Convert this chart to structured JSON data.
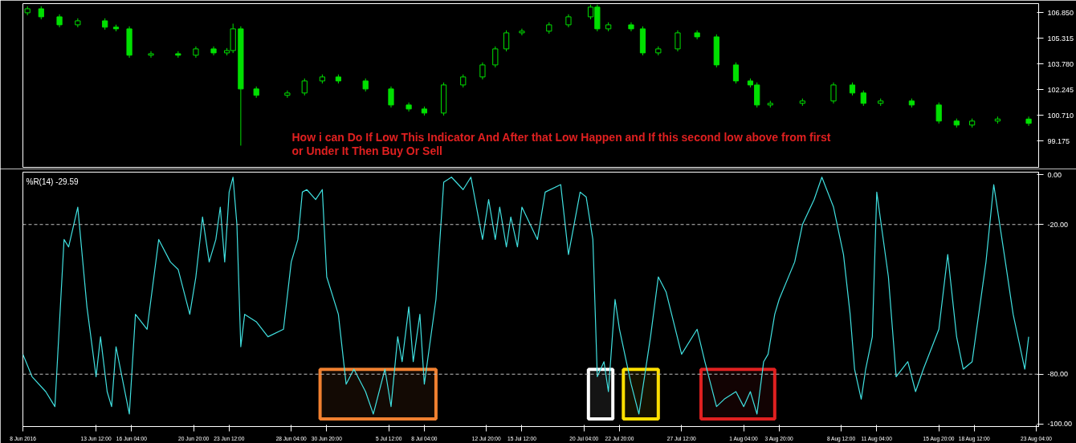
{
  "chart_data": [
    {
      "type": "candlestick",
      "xlim": [
        "2016-06-08T00:00",
        "2016-08-23T08:00"
      ],
      "ylim": [
        97.6,
        107.4
      ],
      "tick_labels": "y",
      "grid": false,
      "yticks": [
        {
          "value": 99.175,
          "label": "99.175"
        },
        {
          "value": 100.71,
          "label": "100.710"
        },
        {
          "value": 102.245,
          "label": "102.245"
        },
        {
          "value": 103.78,
          "label": "103.780"
        },
        {
          "value": 105.315,
          "label": "105.315"
        },
        {
          "value": 106.85,
          "label": "106.850"
        }
      ],
      "annotations": [
        "How i can Do If Low This Indicator And After that Low Happen  and If this second low above from first",
        "or Under It Then Buy Or Sell"
      ],
      "series": [
        {
          "color": "#00e000",
          "x": [
            "2016-06-08T08:15",
            "2016-06-09T09:00",
            "2016-06-10T18:00",
            "2016-06-12T03:00",
            "2016-06-14T04:00",
            "2016-06-15T00:00",
            "2016-06-16T00:00",
            "2016-06-17T15:00",
            "2016-06-19T16:00",
            "2016-06-21T00:00",
            "2016-06-22T08:00",
            "2016-06-23T08:00",
            "2016-06-23T19:00",
            "2016-06-24T09:00",
            "2016-06-25T13:00",
            "2016-06-27T21:00",
            "2016-06-29T04:00",
            "2016-06-30T12:00",
            "2016-07-01T17:00",
            "2016-07-03T18:00",
            "2016-07-05T16:00",
            "2016-07-07T00:00",
            "2016-07-08T04:00",
            "2016-07-09T15:00",
            "2016-07-11T02:00",
            "2016-07-12T13:00",
            "2016-07-13T12:00",
            "2016-07-14T08:00",
            "2016-07-15T12:00",
            "2016-07-17T13:00",
            "2016-07-19T00:00",
            "2016-07-20T16:00",
            "2016-07-21T04:00",
            "2016-07-22T00:00",
            "2016-07-23T17:00",
            "2016-07-24T14:00",
            "2016-07-25T18:00",
            "2016-07-27T05:00",
            "2016-07-28T16:00",
            "2016-07-30T03:00",
            "2016-07-31T14:00",
            "2016-08-01T16:00",
            "2016-08-02T04:00",
            "2016-08-03T04:00",
            "2016-08-05T14:00",
            "2016-08-07T22:00",
            "2016-08-09T08:00",
            "2016-08-10T04:00",
            "2016-08-11T11:00",
            "2016-08-13T19:00",
            "2016-08-15T20:00",
            "2016-08-17T04:00",
            "2016-08-18T08:00",
            "2016-08-20T06:00",
            "2016-08-22T14:00"
          ],
          "ohlc": [
            [
              106.85,
              107.24,
              106.7,
              107.09
            ],
            [
              107.09,
              107.24,
              106.46,
              106.61
            ],
            [
              106.61,
              106.76,
              105.98,
              106.13
            ],
            [
              106.13,
              106.52,
              105.98,
              106.37
            ],
            [
              106.37,
              106.52,
              105.84,
              105.99
            ],
            [
              105.99,
              106.14,
              105.74,
              105.89
            ],
            [
              105.89,
              106.04,
              104.16,
              104.31
            ],
            [
              104.31,
              104.55,
              104.16,
              104.4
            ],
            [
              104.4,
              104.55,
              104.16,
              104.31
            ],
            [
              104.31,
              104.84,
              104.16,
              104.69
            ],
            [
              104.69,
              104.84,
              104.3,
              104.45
            ],
            [
              104.45,
              104.74,
              104.3,
              104.59
            ],
            [
              104.59,
              106.2,
              104.44,
              105.89
            ],
            [
              105.89,
              106.04,
              98.9,
              102.29
            ],
            [
              102.29,
              102.44,
              101.76,
              101.91
            ],
            [
              101.91,
              102.2,
              101.76,
              102.05
            ],
            [
              102.05,
              102.92,
              101.9,
              102.77
            ],
            [
              102.77,
              103.16,
              102.62,
              103.01
            ],
            [
              103.01,
              103.16,
              102.62,
              102.77
            ],
            [
              102.77,
              102.92,
              102.14,
              102.29
            ],
            [
              102.29,
              102.44,
              101.18,
              101.33
            ],
            [
              101.33,
              101.48,
              100.94,
              101.09
            ],
            [
              101.09,
              101.24,
              100.7,
              100.85
            ],
            [
              100.85,
              102.68,
              100.7,
              102.53
            ],
            [
              102.53,
              103.16,
              102.38,
              103.01
            ],
            [
              103.01,
              103.88,
              102.86,
              103.73
            ],
            [
              103.73,
              104.84,
              103.58,
              104.69
            ],
            [
              104.69,
              105.8,
              104.54,
              105.65
            ],
            [
              105.65,
              105.9,
              105.5,
              105.75
            ],
            [
              105.75,
              106.28,
              105.6,
              106.13
            ],
            [
              106.13,
              106.76,
              105.98,
              106.61
            ],
            [
              106.61,
              107.34,
              106.46,
              107.19
            ],
            [
              107.19,
              107.34,
              105.74,
              105.89
            ],
            [
              105.89,
              106.28,
              105.74,
              106.13
            ],
            [
              106.13,
              106.28,
              105.74,
              105.89
            ],
            [
              105.89,
              106.04,
              104.3,
              104.45
            ],
            [
              104.45,
              104.84,
              104.3,
              104.69
            ],
            [
              104.69,
              105.8,
              104.54,
              105.65
            ],
            [
              105.65,
              105.8,
              105.26,
              105.41
            ],
            [
              105.41,
              105.56,
              103.58,
              103.73
            ],
            [
              103.73,
              103.88,
              102.62,
              102.77
            ],
            [
              102.77,
              102.92,
              102.38,
              102.53
            ],
            [
              102.53,
              102.68,
              101.18,
              101.33
            ],
            [
              101.33,
              101.58,
              101.18,
              101.43
            ],
            [
              101.43,
              101.72,
              101.28,
              101.57
            ],
            [
              101.57,
              102.68,
              101.42,
              102.53
            ],
            [
              102.53,
              102.68,
              101.9,
              102.05
            ],
            [
              102.05,
              102.2,
              101.28,
              101.43
            ],
            [
              101.43,
              101.72,
              101.28,
              101.57
            ],
            [
              101.57,
              101.72,
              101.18,
              101.33
            ],
            [
              101.33,
              101.48,
              100.22,
              100.37
            ],
            [
              100.37,
              100.52,
              99.98,
              100.13
            ],
            [
              100.13,
              100.52,
              99.98,
              100.37
            ],
            [
              100.37,
              100.64,
              100.22,
              100.49
            ],
            [
              100.49,
              100.64,
              100.08,
              100.23
            ]
          ]
        }
      ]
    },
    {
      "type": "line",
      "title": "%R(14) -29.59",
      "xlim": [
        "2016-06-08T00:00",
        "2016-08-23T08:00"
      ],
      "ylim": [
        -101,
        1
      ],
      "grid": false,
      "xticks": [
        {
          "value": "2016-06-08T00:00",
          "label": "8 Jun 2016"
        },
        {
          "value": "2016-06-13T12:00",
          "label": "13 Jun 12:00"
        },
        {
          "value": "2016-06-16T04:00",
          "label": "16 Jun 04:00"
        },
        {
          "value": "2016-06-20T20:00",
          "label": "20 Jun 20:00"
        },
        {
          "value": "2016-06-23T12:00",
          "label": "23 Jun 12:00"
        },
        {
          "value": "2016-06-28T04:00",
          "label": "28 Jun 04:00"
        },
        {
          "value": "2016-06-30T20:00",
          "label": "30 Jun 20:00"
        },
        {
          "value": "2016-07-05T12:00",
          "label": "5 Jul 12:00"
        },
        {
          "value": "2016-07-08T04:00",
          "label": "8 Jul 04:00"
        },
        {
          "value": "2016-07-12T20:00",
          "label": "12 Jul 20:00"
        },
        {
          "value": "2016-07-15T12:00",
          "label": "15 Jul 12:00"
        },
        {
          "value": "2016-07-20T04:00",
          "label": "20 Jul 04:00"
        },
        {
          "value": "2016-07-22T20:00",
          "label": "22 Jul 20:00"
        },
        {
          "value": "2016-07-27T12:00",
          "label": "27 Jul 12:00"
        },
        {
          "value": "2016-08-01T04:00",
          "label": "1 Aug 04:00"
        },
        {
          "value": "2016-08-03T20:00",
          "label": "3 Aug 20:00"
        },
        {
          "value": "2016-08-08T12:00",
          "label": "8 Aug 12:00"
        },
        {
          "value": "2016-08-11T04:00",
          "label": "11 Aug 04:00"
        },
        {
          "value": "2016-08-15T20:00",
          "label": "15 Aug 20:00"
        },
        {
          "value": "2016-08-18T12:00",
          "label": "18 Aug 12:00"
        },
        {
          "value": "2016-08-23T04:00",
          "label": "23 Aug 04:00"
        }
      ],
      "yticks": [
        {
          "value": 0,
          "label": "0.00"
        },
        {
          "value": -20,
          "label": "-20.00"
        },
        {
          "value": -80,
          "label": "-80.00"
        },
        {
          "value": -100,
          "label": "-100.00"
        }
      ],
      "ref_lines": [
        {
          "axis": "y",
          "value": -20,
          "color": "#c0c0c0",
          "line_style": "dashed"
        },
        {
          "axis": "y",
          "value": -80,
          "color": "#c0c0c0",
          "line_style": "dashed"
        }
      ],
      "bands": [
        {
          "axis": "x",
          "from": "2016-06-30T08:00",
          "to": "2016-07-09T01:00",
          "color": "#f08030"
        },
        {
          "axis": "x",
          "from": "2016-07-20T12:00",
          "to": "2016-07-22T08:00",
          "color": "#ffffff"
        },
        {
          "axis": "x",
          "from": "2016-07-23T03:00",
          "to": "2016-07-25T18:00",
          "color": "#ffe000"
        },
        {
          "axis": "x",
          "from": "2016-07-28T23:00",
          "to": "2016-08-03T12:00",
          "color": "#e02020"
        }
      ],
      "series": [
        {
          "color": "#40e0e0",
          "x": [
            "2016-06-08T00:00",
            "2016-06-08T16:30",
            "2016-06-09T17:15",
            "2016-06-10T09:45",
            "2016-06-11T02:15",
            "2016-06-11T10:30",
            "2016-06-12T03:00",
            "2016-06-12T19:30",
            "2016-06-13T12:00",
            "2016-06-13T20:00",
            "2016-06-14T08:00",
            "2016-06-14T16:00",
            "2016-06-15T00:00",
            "2016-06-15T08:00",
            "2016-06-16T00:00",
            "2016-06-16T11:00",
            "2016-06-17T08:00",
            "2016-06-18T05:00",
            "2016-06-19T02:00",
            "2016-06-19T16:00",
            "2016-06-20T13:00",
            "2016-06-21T00:00",
            "2016-06-21T12:00",
            "2016-06-22T00:00",
            "2016-06-22T12:00",
            "2016-06-22T20:00",
            "2016-06-23T04:00",
            "2016-06-23T12:00",
            "2016-06-23T19:00",
            "2016-06-24T02:00",
            "2016-06-24T09:00",
            "2016-06-24T16:00",
            "2016-06-25T13:00",
            "2016-06-26T10:00",
            "2016-06-27T14:00",
            "2016-06-28T04:00",
            "2016-06-28T16:00",
            "2016-06-29T00:00",
            "2016-06-29T08:00",
            "2016-06-30T00:00",
            "2016-06-30T12:00",
            "2016-06-30T20:00",
            "2016-07-01T17:00",
            "2016-07-02T07:00",
            "2016-07-02T21:00",
            "2016-07-03T18:00",
            "2016-07-04T08:00",
            "2016-07-05T05:00",
            "2016-07-05T16:00",
            "2016-07-06T04:00",
            "2016-07-06T12:00",
            "2016-07-07T00:00",
            "2016-07-07T08:00",
            "2016-07-07T20:00",
            "2016-07-08T04:00",
            "2016-07-09T01:00",
            "2016-07-09T15:00",
            "2016-07-10T05:00",
            "2016-07-11T02:00",
            "2016-07-11T16:00",
            "2016-07-12T13:00",
            "2016-07-13T00:00",
            "2016-07-13T12:00",
            "2016-07-13T20:00",
            "2016-07-14T08:00",
            "2016-07-14T16:00",
            "2016-07-15T04:00",
            "2016-07-15T12:00",
            "2016-07-16T16:00",
            "2016-07-17T06:00",
            "2016-07-18T10:00",
            "2016-07-19T00:00",
            "2016-07-19T21:00",
            "2016-07-20T08:00",
            "2016-07-20T20:00",
            "2016-07-21T04:00",
            "2016-07-21T16:00",
            "2016-07-22T00:00",
            "2016-07-22T12:00",
            "2016-07-22T20:00",
            "2016-07-23T17:00",
            "2016-07-24T07:00",
            "2016-07-25T04:00",
            "2016-07-25T18:00",
            "2016-07-26T08:00",
            "2016-07-27T12:00",
            "2016-07-28T16:00",
            "2016-07-29T06:00",
            "2016-07-30T03:00",
            "2016-07-30T17:00",
            "2016-07-31T14:00",
            "2016-08-01T04:00",
            "2016-08-01T16:00",
            "2016-08-02T04:00",
            "2016-08-02T16:00",
            "2016-08-03T00:00",
            "2016-08-03T12:00",
            "2016-08-03T20:00",
            "2016-08-05T00:00",
            "2016-08-05T14:00",
            "2016-08-06T11:00",
            "2016-08-07T01:00",
            "2016-08-07T22:00",
            "2016-08-08T16:00",
            "2016-08-09T04:00",
            "2016-08-09T12:00",
            "2016-08-10T00:00",
            "2016-08-10T08:00",
            "2016-08-10T20:00",
            "2016-08-11T04:00",
            "2016-08-12T01:00",
            "2016-08-12T15:00",
            "2016-08-13T12:00",
            "2016-08-14T02:00",
            "2016-08-14T16:00",
            "2016-08-15T20:00",
            "2016-08-16T12:00",
            "2016-08-17T04:00",
            "2016-08-17T16:00",
            "2016-08-18T08:00",
            "2016-08-19T09:00",
            "2016-08-19T23:00",
            "2016-08-20T20:00",
            "2016-08-21T10:00",
            "2016-08-22T07:00",
            "2016-08-22T14:00"
          ],
          "values": [
            -72,
            -81,
            -87,
            -93,
            -26,
            -29,
            -13,
            -53,
            -81,
            -65,
            -87,
            -93,
            -69,
            -78,
            -96,
            -56,
            -62,
            -26,
            -35,
            -38,
            -56,
            -41,
            -17,
            -35,
            -26,
            -13,
            -35,
            -7,
            -1,
            -20,
            -69,
            -56,
            -59,
            -65,
            -62,
            -35,
            -26,
            -7,
            -6,
            -10,
            -6,
            -41,
            -56,
            -84,
            -78,
            -87,
            -96,
            -78,
            -93,
            -65,
            -75,
            -53,
            -75,
            -56,
            -84,
            -50,
            -3,
            -1,
            -6,
            -1,
            -26,
            -10,
            -26,
            -13,
            -29,
            -17,
            -29,
            -13,
            -26,
            -7,
            -4,
            -32,
            -7,
            -9,
            -26,
            -81,
            -75,
            -87,
            -50,
            -62,
            -84,
            -96,
            -65,
            -41,
            -47,
            -72,
            -62,
            -75,
            -93,
            -90,
            -87,
            -93,
            -87,
            -96,
            -75,
            -72,
            -56,
            -50,
            -35,
            -20,
            -10,
            -1,
            -13,
            -32,
            -56,
            -78,
            -90,
            -78,
            -65,
            -7,
            -41,
            -81,
            -75,
            -87,
            -78,
            -62,
            -32,
            -65,
            -78,
            -75,
            -35,
            -4,
            -35,
            -56,
            -78,
            -65
          ]
        }
      ]
    }
  ]
}
